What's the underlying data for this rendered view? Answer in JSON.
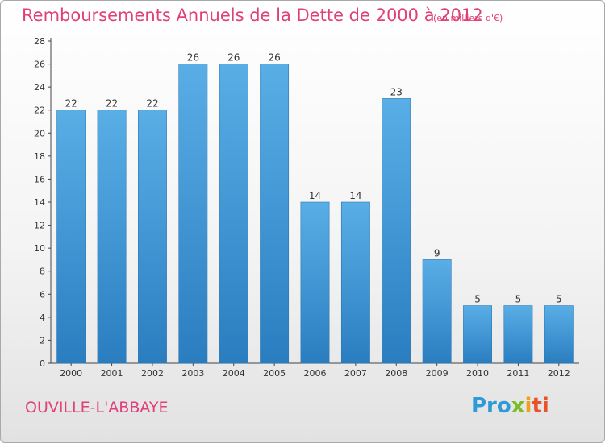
{
  "header": {
    "title": "Remboursements Annuels de la Dette de 2000 à 2012",
    "unit": "(en milliers d'€)"
  },
  "footer": {
    "place": "OUVILLE-L'ABBAYE",
    "logo": {
      "p1": "Pro",
      "p2": "x",
      "p3": "i",
      "p4": "ti"
    }
  },
  "colors": {
    "bar_top": "#5aaee6",
    "bar_bottom": "#2a7ec0",
    "title": "#e0407a"
  },
  "chart_data": {
    "type": "bar",
    "title": "Remboursements Annuels de la Dette de 2000 à 2012",
    "subtitle": "(en milliers d'€)",
    "categories": [
      "2000",
      "2001",
      "2002",
      "2003",
      "2004",
      "2005",
      "2006",
      "2007",
      "2008",
      "2009",
      "2010",
      "2011",
      "2012"
    ],
    "values": [
      22,
      22,
      22,
      26,
      26,
      26,
      14,
      14,
      23,
      9,
      5,
      5,
      5
    ],
    "ylim": [
      0,
      28
    ],
    "yticks": [
      0,
      2,
      4,
      6,
      8,
      10,
      12,
      14,
      16,
      18,
      20,
      22,
      24,
      26,
      28
    ],
    "grid": false,
    "legend": "none"
  }
}
